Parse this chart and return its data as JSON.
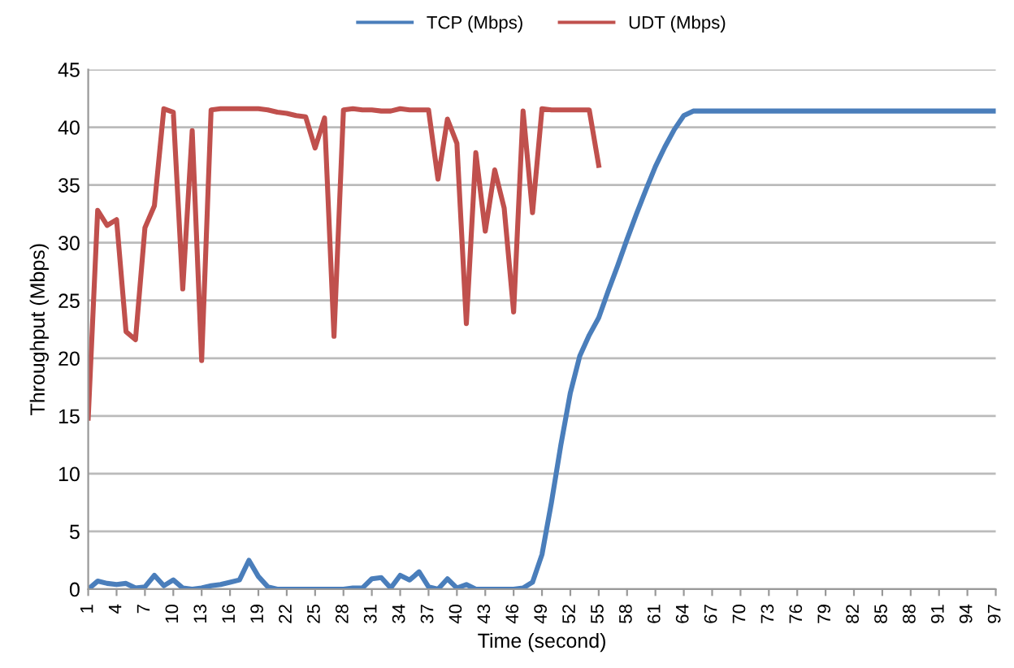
{
  "chart_data": {
    "type": "line",
    "xlabel": "Time (second)",
    "ylabel": "Throughput (Mbps)",
    "x": [
      1,
      2,
      3,
      4,
      5,
      6,
      7,
      8,
      9,
      10,
      11,
      12,
      13,
      14,
      15,
      16,
      17,
      18,
      19,
      20,
      21,
      22,
      23,
      24,
      25,
      26,
      27,
      28,
      29,
      30,
      31,
      32,
      33,
      34,
      35,
      36,
      37,
      38,
      39,
      40,
      41,
      42,
      43,
      44,
      45,
      46,
      47,
      48,
      49,
      50,
      51,
      52,
      53,
      54,
      55,
      56,
      57,
      58,
      59,
      60,
      61,
      62,
      63,
      64,
      65,
      66,
      67,
      68,
      69,
      70,
      71,
      72,
      73,
      74,
      75,
      76,
      77,
      78,
      79,
      80,
      81,
      82,
      83,
      84,
      85,
      86,
      87,
      88,
      89,
      90,
      91,
      92,
      93,
      94,
      95,
      96,
      97
    ],
    "series": [
      {
        "name": "TCP (Mbps)",
        "color": "#4a7ebb",
        "values": [
          0,
          0.7,
          0.5,
          0.4,
          0.5,
          0.1,
          0.2,
          1.2,
          0.3,
          0.8,
          0.1,
          0,
          0.1,
          0.3,
          0.4,
          0.6,
          0.8,
          2.5,
          1.1,
          0.2,
          0,
          0,
          0,
          0,
          0,
          0,
          0,
          0,
          0.1,
          0.1,
          0.9,
          1.0,
          0.1,
          1.2,
          0.8,
          1.5,
          0.2,
          0,
          0.9,
          0.1,
          0.4,
          0,
          0,
          0,
          0,
          0,
          0.1,
          0.6,
          3,
          7.5,
          12.5,
          17,
          20.2,
          22,
          23.5,
          25.8,
          28,
          30.3,
          32.5,
          34.6,
          36.6,
          38.3,
          39.8,
          41,
          41.4,
          41.4,
          41.4,
          41.4,
          41.4,
          41.4,
          41.4,
          41.4,
          41.4,
          41.4,
          41.4,
          41.4,
          41.4,
          41.4,
          41.4,
          41.4,
          41.4,
          41.4,
          41.4,
          41.4,
          41.4,
          41.4,
          41.4,
          41.4,
          41.4,
          41.4,
          41.4,
          41.4,
          41.4,
          41.4,
          41.4,
          41.4,
          41.4
        ]
      },
      {
        "name": "UDT (Mbps)",
        "color": "#c0504d",
        "values": [
          14.8,
          32.8,
          31.5,
          32,
          22.3,
          21.6,
          31.3,
          33.2,
          41.6,
          41.3,
          26,
          39.7,
          19.8,
          41.5,
          41.6,
          41.6,
          41.6,
          41.6,
          41.6,
          41.5,
          41.3,
          41.2,
          41,
          40.9,
          38.2,
          40.8,
          21.9,
          41.5,
          41.6,
          41.5,
          41.5,
          41.4,
          41.4,
          41.6,
          41.5,
          41.5,
          41.5,
          35.5,
          40.7,
          38.6,
          23,
          37.8,
          31,
          36.3,
          33,
          24,
          41.4,
          32.6,
          41.6,
          41.5,
          41.5,
          41.5,
          41.5,
          41.5,
          36.7,
          null,
          null,
          null,
          null,
          null,
          null,
          null,
          null,
          null,
          null,
          null,
          null,
          null,
          null,
          null,
          null,
          null,
          null,
          null,
          null,
          null,
          null,
          null,
          null,
          null,
          null,
          null,
          null,
          null,
          null,
          null,
          null,
          null,
          null,
          null,
          null,
          null,
          null,
          null,
          null,
          null,
          null
        ]
      }
    ],
    "xlim": [
      1,
      97
    ],
    "xticks": [
      1,
      4,
      7,
      10,
      13,
      16,
      19,
      22,
      25,
      28,
      31,
      34,
      37,
      40,
      43,
      46,
      49,
      52,
      55,
      58,
      61,
      64,
      67,
      70,
      73,
      76,
      79,
      82,
      85,
      88,
      91,
      94,
      97
    ],
    "ylim": [
      0,
      45
    ],
    "yticks": [
      0,
      5,
      10,
      15,
      20,
      25,
      30,
      35,
      40,
      45
    ],
    "grid": "y",
    "legend": "top",
    "marker": "none",
    "line_style": "solid"
  }
}
